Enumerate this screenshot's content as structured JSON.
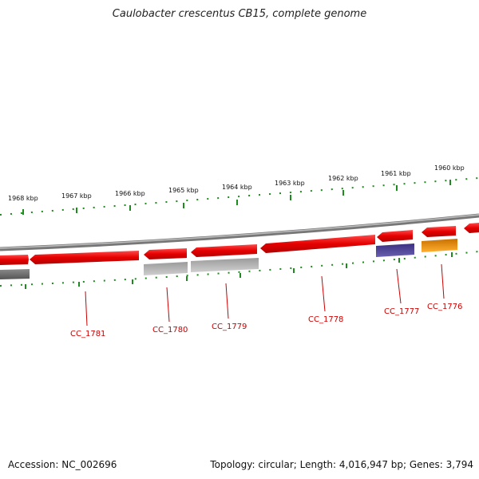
{
  "title": "Caulobacter crescentus CB15, complete genome",
  "footer": {
    "accession": "Accession: NC_002696",
    "summary": "Topology: circular; Length: 4,016,947 bp; Genes: 3,794"
  },
  "colors": {
    "forward_gene": "#ee0000",
    "reverse_gray_dark": "#6a6a6a",
    "reverse_gray_light": "#b8b8b8",
    "reverse_blue": "#4a3f8f",
    "reverse_orange": "#f29a17",
    "backbone": "#8a8a8a",
    "ruler": "#1f8a1f",
    "label": "#cc0000"
  },
  "ruler_labels": [
    "1968 kbp",
    "1967 kbp",
    "1966 kbp",
    "1965 kbp",
    "1964 kbp",
    "1963 kbp",
    "1962 kbp",
    "1961 kbp",
    "1960 kbp"
  ],
  "gene_labels": [
    "CC_1781",
    "CC_1780",
    "CC_1779",
    "CC_1778",
    "CC_1777",
    "CC_1776"
  ]
}
